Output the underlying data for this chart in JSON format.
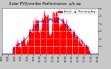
{
  "title": "Solar PV/Inverter Performance  p/z ap",
  "subtitle": "Actual & Running Average Power Output",
  "bg_color": "#c8c8c8",
  "plot_bg": "#ffffff",
  "grid_color": "#aaaaaa",
  "bar_color": "#ff0000",
  "avg_color": "#0000cc",
  "y_max": 6,
  "y_ticks": [
    1,
    2,
    3,
    4,
    5,
    6
  ],
  "num_points": 144,
  "title_fontsize": 4.0,
  "tick_fontsize": 2.8,
  "legend_fontsize": 2.8
}
